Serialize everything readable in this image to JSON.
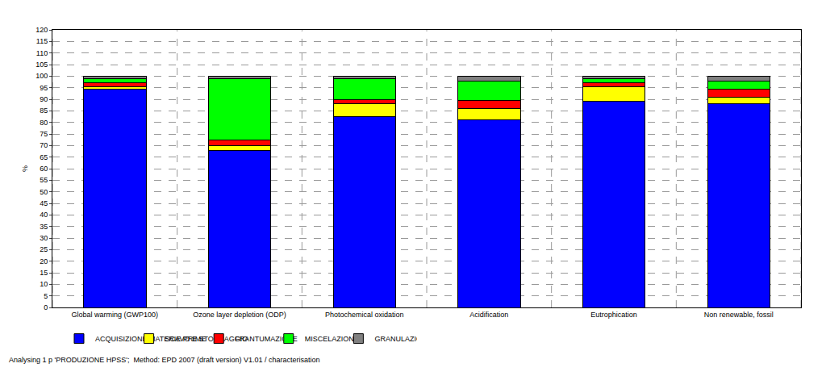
{
  "chart_data": {
    "type": "bar",
    "stacked": true,
    "subtitle": "Analysing 1 p 'PRODUZIONE HPSS';  Method: EPD 2007 (draft version) V1.01 / characterisation",
    "y_label": "%",
    "categories": [
      "Global warming (GWP100)",
      "Ozone layer depletion (ODP)",
      "Photochemical oxidation",
      "Acidification",
      "Eutrophication",
      "Non renewable, fossil"
    ],
    "series": [
      {
        "name": "ACQUISIZIONE MATERIE PRIME",
        "color": "#0000ff",
        "values": [
          94.5,
          68,
          82.5,
          81,
          89,
          88
        ]
      },
      {
        "name": "SCAVO E STOCCAGGIO",
        "color": "#ffff00",
        "values": [
          1,
          2,
          5.5,
          5,
          6.5,
          3
        ]
      },
      {
        "name": "FRANTUMAZIONE",
        "color": "#ff0000",
        "values": [
          1.5,
          2.5,
          2,
          3.5,
          1.5,
          3.5
        ]
      },
      {
        "name": "MISCELAZIONE",
        "color": "#00ff00",
        "values": [
          2,
          26.5,
          9,
          8.5,
          2,
          3.5
        ]
      },
      {
        "name": "GRANULAZIONE E MATURAZIONE",
        "color": "#808080",
        "values": [
          1,
          1,
          1,
          2,
          1,
          2
        ]
      }
    ],
    "ylim": [
      0,
      120
    ],
    "yticks": [
      0,
      5,
      10,
      15,
      20,
      25,
      30,
      35,
      40,
      45,
      50,
      55,
      60,
      65,
      70,
      75,
      80,
      85,
      90,
      95,
      100,
      105,
      110,
      115,
      120
    ],
    "grid": true,
    "legend": "bottom"
  }
}
